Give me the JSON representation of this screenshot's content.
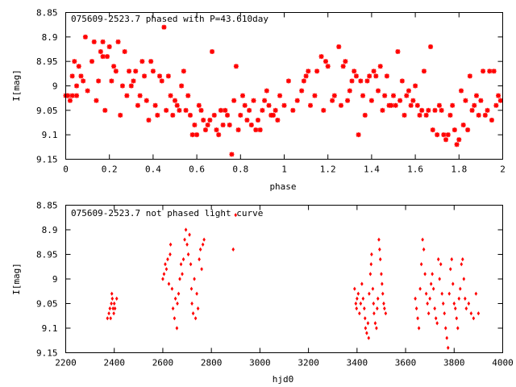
{
  "chart_data": [
    {
      "type": "scatter",
      "title": "075609-2523.7 phased with P=43.610day",
      "xlabel": "phase",
      "ylabel": "I[mag]",
      "xlim": [
        0,
        2
      ],
      "ylim": [
        8.85,
        9.15
      ],
      "y_inverted": true,
      "grid": false,
      "marker": "star",
      "color": "#ff0000",
      "xticks": [
        0,
        0.2,
        0.4,
        0.6,
        0.8,
        1,
        1.2,
        1.4,
        1.6,
        1.8,
        2
      ],
      "xtick_labels": [
        "0",
        "0.2",
        "0.4",
        "0.6",
        "0.8",
        "1",
        "1.2",
        "1.4",
        "1.6",
        "1.8",
        "2"
      ],
      "yticks": [
        8.85,
        8.9,
        8.95,
        9,
        9.05,
        9.1,
        9.15
      ],
      "ytick_labels": [
        "8.85",
        "8.9",
        "8.95",
        "9",
        "9.05",
        "9.1",
        "9.15"
      ],
      "points": [
        [
          0.0,
          9.02
        ],
        [
          0.01,
          9.02
        ],
        [
          0.02,
          9.03
        ],
        [
          0.03,
          9.02
        ],
        [
          0.03,
          8.98
        ],
        [
          0.04,
          8.95
        ],
        [
          0.05,
          9.02
        ],
        [
          0.05,
          9.0
        ],
        [
          0.06,
          8.96
        ],
        [
          0.07,
          8.98
        ],
        [
          0.08,
          8.99
        ],
        [
          0.09,
          8.9
        ],
        [
          0.1,
          9.01
        ],
        [
          0.12,
          8.95
        ],
        [
          0.13,
          8.91
        ],
        [
          0.14,
          9.03
        ],
        [
          0.15,
          8.99
        ],
        [
          0.16,
          8.93
        ],
        [
          0.17,
          8.94
        ],
        [
          0.17,
          8.91
        ],
        [
          0.18,
          9.05
        ],
        [
          0.19,
          8.94
        ],
        [
          0.2,
          8.92
        ],
        [
          0.21,
          8.99
        ],
        [
          0.22,
          8.96
        ],
        [
          0.23,
          8.97
        ],
        [
          0.24,
          8.91
        ],
        [
          0.25,
          9.06
        ],
        [
          0.26,
          9.0
        ],
        [
          0.27,
          8.93
        ],
        [
          0.28,
          9.02
        ],
        [
          0.29,
          8.97
        ],
        [
          0.3,
          9.0
        ],
        [
          0.31,
          8.99
        ],
        [
          0.32,
          8.97
        ],
        [
          0.33,
          9.04
        ],
        [
          0.34,
          9.02
        ],
        [
          0.35,
          8.95
        ],
        [
          0.36,
          8.98
        ],
        [
          0.37,
          9.03
        ],
        [
          0.38,
          9.07
        ],
        [
          0.39,
          8.95
        ],
        [
          0.4,
          8.97
        ],
        [
          0.41,
          9.04
        ],
        [
          0.42,
          9.06
        ],
        [
          0.43,
          8.98
        ],
        [
          0.44,
          8.99
        ],
        [
          0.45,
          8.88
        ],
        [
          0.46,
          9.05
        ],
        [
          0.47,
          8.98
        ],
        [
          0.48,
          9.02
        ],
        [
          0.49,
          9.06
        ],
        [
          0.5,
          9.03
        ],
        [
          0.51,
          9.04
        ],
        [
          0.52,
          9.05
        ],
        [
          0.53,
          9.0
        ],
        [
          0.54,
          8.97
        ],
        [
          0.55,
          9.05
        ],
        [
          0.56,
          9.02
        ],
        [
          0.57,
          9.06
        ],
        [
          0.58,
          9.1
        ],
        [
          0.59,
          9.08
        ],
        [
          0.6,
          9.1
        ],
        [
          0.61,
          9.04
        ],
        [
          0.62,
          9.05
        ],
        [
          0.63,
          9.07
        ],
        [
          0.64,
          9.09
        ],
        [
          0.65,
          9.08
        ],
        [
          0.66,
          9.07
        ],
        [
          0.67,
          8.93
        ],
        [
          0.68,
          9.06
        ],
        [
          0.69,
          9.09
        ],
        [
          0.7,
          9.1
        ],
        [
          0.71,
          9.05
        ],
        [
          0.72,
          9.08
        ],
        [
          0.73,
          9.05
        ],
        [
          0.74,
          9.06
        ],
        [
          0.75,
          9.08
        ],
        [
          0.76,
          9.14
        ],
        [
          0.77,
          9.03
        ],
        [
          0.78,
          8.96
        ],
        [
          0.79,
          9.09
        ],
        [
          0.8,
          9.06
        ],
        [
          0.81,
          9.02
        ],
        [
          0.82,
          9.04
        ],
        [
          0.83,
          9.07
        ],
        [
          0.84,
          9.05
        ],
        [
          0.85,
          9.08
        ],
        [
          0.86,
          9.03
        ],
        [
          0.87,
          9.09
        ],
        [
          0.88,
          9.07
        ],
        [
          0.89,
          9.09
        ],
        [
          0.9,
          9.05
        ],
        [
          0.91,
          9.03
        ],
        [
          0.92,
          9.01
        ],
        [
          0.93,
          9.04
        ],
        [
          0.94,
          9.06
        ],
        [
          0.95,
          9.06
        ],
        [
          0.96,
          9.05
        ],
        [
          0.97,
          9.07
        ],
        [
          0.98,
          9.02
        ],
        [
          1.0,
          9.04
        ],
        [
          1.02,
          8.99
        ],
        [
          1.04,
          9.05
        ],
        [
          1.06,
          9.03
        ],
        [
          1.08,
          9.01
        ],
        [
          1.09,
          8.99
        ],
        [
          1.1,
          8.98
        ],
        [
          1.11,
          8.97
        ],
        [
          1.12,
          9.04
        ],
        [
          1.14,
          9.02
        ],
        [
          1.15,
          8.97
        ],
        [
          1.17,
          8.94
        ],
        [
          1.18,
          9.05
        ],
        [
          1.19,
          8.95
        ],
        [
          1.2,
          8.96
        ],
        [
          1.22,
          9.03
        ],
        [
          1.23,
          9.02
        ],
        [
          1.25,
          8.92
        ],
        [
          1.26,
          9.04
        ],
        [
          1.27,
          8.96
        ],
        [
          1.28,
          8.95
        ],
        [
          1.29,
          9.03
        ],
        [
          1.3,
          9.01
        ],
        [
          1.31,
          8.99
        ],
        [
          1.32,
          8.97
        ],
        [
          1.33,
          8.98
        ],
        [
          1.34,
          9.1
        ],
        [
          1.35,
          8.99
        ],
        [
          1.36,
          9.02
        ],
        [
          1.37,
          9.06
        ],
        [
          1.38,
          8.99
        ],
        [
          1.39,
          8.98
        ],
        [
          1.4,
          9.03
        ],
        [
          1.41,
          8.97
        ],
        [
          1.42,
          8.98
        ],
        [
          1.43,
          9.01
        ],
        [
          1.44,
          8.96
        ],
        [
          1.45,
          9.05
        ],
        [
          1.46,
          9.02
        ],
        [
          1.47,
          8.98
        ],
        [
          1.48,
          9.04
        ],
        [
          1.49,
          9.04
        ],
        [
          1.5,
          9.02
        ],
        [
          1.51,
          9.04
        ],
        [
          1.52,
          8.93
        ],
        [
          1.53,
          9.03
        ],
        [
          1.54,
          8.99
        ],
        [
          1.55,
          9.06
        ],
        [
          1.56,
          9.02
        ],
        [
          1.57,
          9.01
        ],
        [
          1.58,
          9.04
        ],
        [
          1.59,
          9.03
        ],
        [
          1.6,
          9.0
        ],
        [
          1.61,
          9.04
        ],
        [
          1.62,
          9.06
        ],
        [
          1.63,
          9.05
        ],
        [
          1.64,
          8.97
        ],
        [
          1.65,
          9.06
        ],
        [
          1.66,
          9.05
        ],
        [
          1.67,
          8.92
        ],
        [
          1.68,
          9.09
        ],
        [
          1.69,
          9.05
        ],
        [
          1.7,
          9.1
        ],
        [
          1.71,
          9.04
        ],
        [
          1.72,
          9.05
        ],
        [
          1.73,
          9.1
        ],
        [
          1.74,
          9.11
        ],
        [
          1.75,
          9.1
        ],
        [
          1.76,
          9.06
        ],
        [
          1.77,
          9.04
        ],
        [
          1.78,
          9.09
        ],
        [
          1.79,
          9.12
        ],
        [
          1.8,
          9.11
        ],
        [
          1.81,
          9.01
        ],
        [
          1.82,
          9.08
        ],
        [
          1.83,
          9.03
        ],
        [
          1.84,
          9.09
        ],
        [
          1.85,
          8.98
        ],
        [
          1.86,
          9.05
        ],
        [
          1.87,
          9.04
        ],
        [
          1.88,
          9.02
        ],
        [
          1.89,
          9.06
        ],
        [
          1.9,
          9.03
        ],
        [
          1.91,
          8.97
        ],
        [
          1.92,
          9.06
        ],
        [
          1.93,
          9.05
        ],
        [
          1.94,
          8.97
        ],
        [
          1.95,
          9.07
        ],
        [
          1.96,
          8.97
        ],
        [
          1.97,
          9.04
        ],
        [
          1.98,
          9.02
        ],
        [
          1.99,
          9.03
        ]
      ]
    },
    {
      "type": "scatter",
      "title": "075609-2523.7 not phased light curve",
      "xlabel": "hjd0",
      "ylabel": "I[mag]",
      "xlim": [
        2200,
        4000
      ],
      "ylim": [
        8.85,
        9.15
      ],
      "y_inverted": true,
      "grid": false,
      "marker": "diamond",
      "color": "#ff0000",
      "xticks": [
        2200,
        2400,
        2600,
        2800,
        3000,
        3200,
        3400,
        3600,
        3800,
        4000
      ],
      "xtick_labels": [
        "2200",
        "2400",
        "2600",
        "2800",
        "3000",
        "3200",
        "3400",
        "3600",
        "3800",
        "4000"
      ],
      "yticks": [
        8.85,
        8.9,
        8.95,
        9,
        9.05,
        9.1,
        9.15
      ],
      "ytick_labels": [
        "8.85",
        "8.9",
        "8.95",
        "9",
        "9.05",
        "9.1",
        "9.15"
      ],
      "points": [
        [
          2372,
          9.08
        ],
        [
          2378,
          9.07
        ],
        [
          2382,
          9.06
        ],
        [
          2385,
          9.08
        ],
        [
          2388,
          9.05
        ],
        [
          2390,
          9.03
        ],
        [
          2392,
          9.04
        ],
        [
          2395,
          9.06
        ],
        [
          2398,
          9.07
        ],
        [
          2400,
          9.05
        ],
        [
          2403,
          9.06
        ],
        [
          2410,
          9.04
        ],
        [
          2600,
          9.0
        ],
        [
          2605,
          8.99
        ],
        [
          2610,
          8.97
        ],
        [
          2615,
          8.98
        ],
        [
          2620,
          8.96
        ],
        [
          2625,
          9.01
        ],
        [
          2630,
          8.95
        ],
        [
          2632,
          8.93
        ],
        [
          2638,
          9.02
        ],
        [
          2642,
          9.06
        ],
        [
          2648,
          9.08
        ],
        [
          2652,
          9.04
        ],
        [
          2658,
          9.1
        ],
        [
          2660,
          9.05
        ],
        [
          2665,
          9.03
        ],
        [
          2670,
          9.0
        ],
        [
          2675,
          8.97
        ],
        [
          2680,
          8.99
        ],
        [
          2685,
          8.96
        ],
        [
          2690,
          8.92
        ],
        [
          2695,
          8.9
        ],
        [
          2700,
          8.93
        ],
        [
          2705,
          8.95
        ],
        [
          2710,
          8.91
        ],
        [
          2715,
          8.97
        ],
        [
          2718,
          9.02
        ],
        [
          2720,
          9.05
        ],
        [
          2725,
          9.07
        ],
        [
          2730,
          9.0
        ],
        [
          2735,
          9.08
        ],
        [
          2740,
          9.03
        ],
        [
          2745,
          9.06
        ],
        [
          2750,
          8.96
        ],
        [
          2755,
          8.94
        ],
        [
          2760,
          8.98
        ],
        [
          2765,
          8.93
        ],
        [
          2770,
          8.92
        ],
        [
          2890,
          8.94
        ],
        [
          2900,
          8.87
        ],
        [
          3390,
          9.02
        ],
        [
          3395,
          9.05
        ],
        [
          3398,
          9.06
        ],
        [
          3400,
          9.04
        ],
        [
          3405,
          9.03
        ],
        [
          3410,
          9.07
        ],
        [
          3415,
          9.05
        ],
        [
          3420,
          9.01
        ],
        [
          3425,
          9.04
        ],
        [
          3430,
          9.06
        ],
        [
          3433,
          9.08
        ],
        [
          3435,
          9.1
        ],
        [
          3440,
          9.11
        ],
        [
          3445,
          9.09
        ],
        [
          3448,
          9.12
        ],
        [
          3450,
          9.03
        ],
        [
          3455,
          8.99
        ],
        [
          3458,
          8.97
        ],
        [
          3460,
          8.95
        ],
        [
          3465,
          9.02
        ],
        [
          3468,
          9.05
        ],
        [
          3470,
          9.07
        ],
        [
          3475,
          9.09
        ],
        [
          3480,
          9.1
        ],
        [
          3483,
          9.06
        ],
        [
          3486,
          9.04
        ],
        [
          3490,
          8.92
        ],
        [
          3493,
          8.94
        ],
        [
          3496,
          8.96
        ],
        [
          3500,
          8.99
        ],
        [
          3503,
          9.01
        ],
        [
          3506,
          9.03
        ],
        [
          3510,
          9.05
        ],
        [
          3513,
          9.06
        ],
        [
          3518,
          9.07
        ],
        [
          3640,
          9.04
        ],
        [
          3645,
          9.06
        ],
        [
          3650,
          9.08
        ],
        [
          3655,
          9.1
        ],
        [
          3660,
          9.02
        ],
        [
          3665,
          8.97
        ],
        [
          3670,
          8.92
        ],
        [
          3675,
          8.94
        ],
        [
          3680,
          8.99
        ],
        [
          3685,
          9.03
        ],
        [
          3690,
          9.05
        ],
        [
          3695,
          9.07
        ],
        [
          3700,
          9.04
        ],
        [
          3705,
          9.01
        ],
        [
          3710,
          8.99
        ],
        [
          3715,
          9.02
        ],
        [
          3720,
          9.06
        ],
        [
          3725,
          9.08
        ],
        [
          3730,
          9.09
        ],
        [
          3735,
          8.96
        ],
        [
          3740,
          9.0
        ],
        [
          3745,
          8.97
        ],
        [
          3750,
          9.03
        ],
        [
          3755,
          9.05
        ],
        [
          3760,
          9.07
        ],
        [
          3765,
          9.1
        ],
        [
          3770,
          9.12
        ],
        [
          3775,
          9.14
        ],
        [
          3780,
          9.03
        ],
        [
          3785,
          8.98
        ],
        [
          3790,
          8.96
        ],
        [
          3795,
          9.01
        ],
        [
          3800,
          9.05
        ],
        [
          3805,
          9.06
        ],
        [
          3810,
          9.08
        ],
        [
          3815,
          9.1
        ],
        [
          3820,
          9.04
        ],
        [
          3825,
          9.02
        ],
        [
          3830,
          8.97
        ],
        [
          3835,
          8.96
        ],
        [
          3840,
          9.0
        ],
        [
          3845,
          9.04
        ],
        [
          3850,
          9.06
        ],
        [
          3860,
          9.05
        ],
        [
          3870,
          9.07
        ],
        [
          3880,
          9.08
        ],
        [
          3890,
          9.03
        ],
        [
          3900,
          9.07
        ]
      ]
    }
  ]
}
